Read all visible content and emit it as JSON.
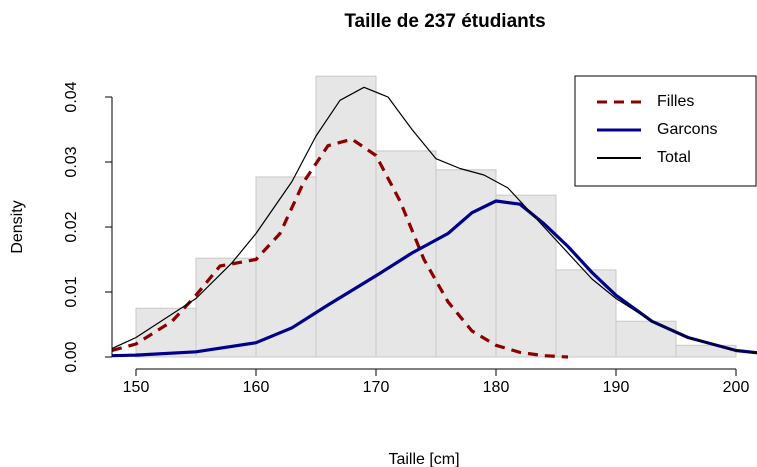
{
  "chart_data": {
    "type": "histogram-density",
    "title": "Taille de 237 étudiants",
    "xlabel": "Taille [cm]",
    "ylabel": "Density",
    "bins": [
      150,
      155,
      160,
      165,
      170,
      175,
      180,
      185,
      190,
      195,
      200
    ],
    "counts": [
      0.0075,
      0.0152,
      0.0277,
      0.0432,
      0.0317,
      0.0288,
      0.0249,
      0.0134,
      0.0055,
      0.0018
    ],
    "bar_color": "#e6e6e6",
    "series": [
      {
        "name": "Filles",
        "color": "#8b0000",
        "dash": true,
        "x": [
          148,
          150,
          153,
          155,
          157,
          160,
          162,
          164,
          166,
          168,
          170,
          172,
          174,
          176,
          178,
          180,
          182,
          184,
          186
        ],
        "values": [
          0.001,
          0.002,
          0.0055,
          0.0095,
          0.014,
          0.015,
          0.019,
          0.027,
          0.0325,
          0.0335,
          0.031,
          0.024,
          0.015,
          0.0085,
          0.004,
          0.0018,
          0.0007,
          0.0002,
          0.0
        ]
      },
      {
        "name": "Garcons",
        "color": "#00008b",
        "x": [
          148,
          150,
          155,
          160,
          163,
          166,
          170,
          173,
          176,
          178,
          180,
          182,
          184,
          186,
          188,
          190,
          193,
          196,
          200,
          202
        ],
        "values": [
          0.0002,
          0.0003,
          0.0008,
          0.0022,
          0.0045,
          0.008,
          0.0125,
          0.016,
          0.019,
          0.0222,
          0.024,
          0.0235,
          0.0205,
          0.017,
          0.013,
          0.0095,
          0.0055,
          0.003,
          0.001,
          0.0006
        ]
      },
      {
        "name": "Total",
        "color": "#000000",
        "x": [
          148,
          150,
          155,
          158,
          160,
          163,
          165,
          167,
          169,
          171,
          173,
          175,
          177,
          179,
          181,
          183,
          185,
          188,
          190,
          193,
          196,
          200,
          202
        ],
        "values": [
          0.0013,
          0.003,
          0.009,
          0.0145,
          0.019,
          0.027,
          0.034,
          0.0395,
          0.0415,
          0.04,
          0.035,
          0.0305,
          0.029,
          0.028,
          0.026,
          0.022,
          0.018,
          0.012,
          0.009,
          0.0055,
          0.003,
          0.001,
          0.0006
        ]
      }
    ],
    "xlim": [
      148,
      201.75
    ],
    "ylim": [
      0,
      0.044
    ],
    "xticks": [
      150,
      160,
      170,
      180,
      190,
      200
    ],
    "yticks": [
      {
        "value": 0,
        "label": "0.00"
      },
      {
        "value": 0.01,
        "label": "0.01"
      },
      {
        "value": 0.02,
        "label": "0.02"
      },
      {
        "value": 0.03,
        "label": "0.03"
      },
      {
        "value": 0.04,
        "label": "0.04"
      }
    ],
    "legend": "top-right"
  }
}
